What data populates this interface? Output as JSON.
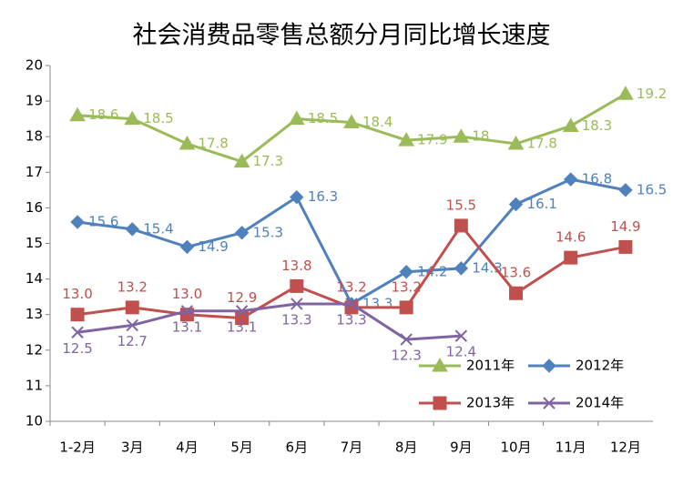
{
  "chart_data": {
    "type": "line",
    "title": "社会消费品零售总额分月同比增长速度",
    "categories": [
      "1-2月",
      "3月",
      "4月",
      "5月",
      "6月",
      "7月",
      "8月",
      "9月",
      "10月",
      "11月",
      "12月"
    ],
    "ylim": [
      10,
      20
    ],
    "yticks": [
      10,
      11,
      12,
      13,
      14,
      15,
      16,
      17,
      18,
      19,
      20
    ],
    "grid": false,
    "legend": "lower right",
    "series": [
      {
        "name": "2011年",
        "color": "#9bbb59",
        "marker": "triangle",
        "values": [
          18.6,
          18.5,
          17.8,
          17.3,
          18.5,
          18.4,
          17.9,
          18,
          17.8,
          18.3,
          19.2
        ]
      },
      {
        "name": "2012年",
        "color": "#4f81bd",
        "marker": "diamond",
        "values": [
          15.6,
          15.4,
          14.9,
          15.3,
          16.3,
          13.3,
          14.2,
          14.3,
          16.1,
          16.8,
          16.5
        ]
      },
      {
        "name": "2013年",
        "color": "#c0504d",
        "marker": "square",
        "values": [
          13.0,
          13.2,
          13.0,
          12.9,
          13.8,
          13.2,
          13.2,
          15.5,
          13.6,
          14.6,
          14.9
        ],
        "value_labels": [
          "13.0",
          "13.2",
          "13.0",
          "12.9",
          "13.8",
          "13.2",
          "13.2",
          "15.5",
          "13.6",
          "14.6",
          "14.9"
        ]
      },
      {
        "name": "2014年",
        "color": "#8064a2",
        "marker": "x",
        "values": [
          12.5,
          12.7,
          13.1,
          13.1,
          13.3,
          13.3,
          12.3,
          12.4,
          null,
          null,
          null
        ]
      }
    ]
  }
}
